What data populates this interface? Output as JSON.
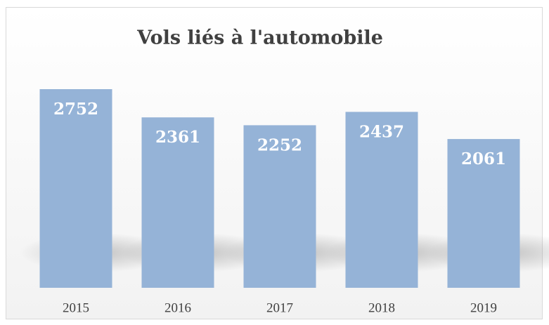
{
  "chart_data": {
    "type": "bar",
    "title": "Vols liés à l'automobile",
    "categories": [
      "2015",
      "2016",
      "2017",
      "2018",
      "2019"
    ],
    "values": [
      2752,
      2361,
      2252,
      2437,
      2061
    ],
    "color": "#95b3d7"
  }
}
